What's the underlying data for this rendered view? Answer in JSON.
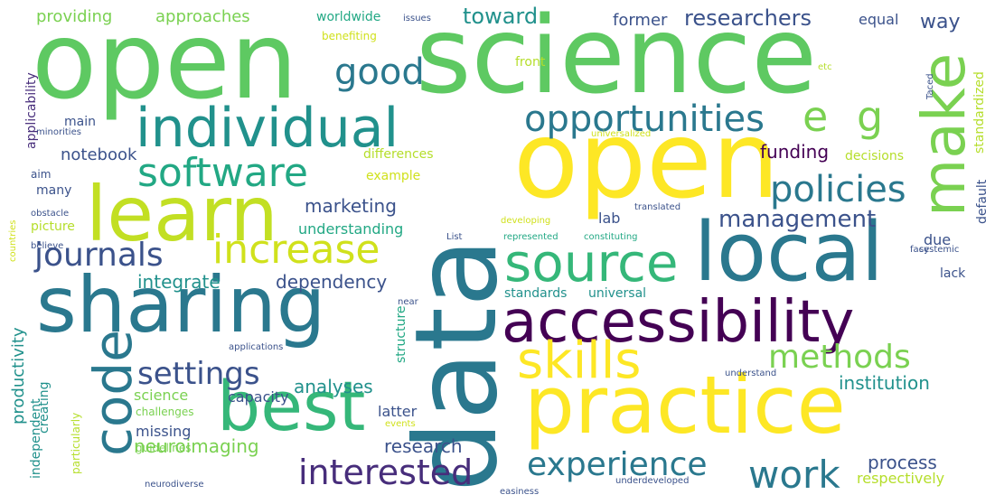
{
  "cloud": {
    "background": "#ffffff",
    "palette": [
      "#440154",
      "#3b528b",
      "#21918c",
      "#5ec962",
      "#fde725"
    ],
    "words": [
      {
        "text": "open",
        "color": "#5ec962",
        "vertical": false
      },
      {
        "text": "science",
        "color": "#5ec962",
        "vertical": false
      },
      {
        "text": "open",
        "color": "#fde725",
        "vertical": false
      },
      {
        "text": "data",
        "color": "#2a788e",
        "vertical": true
      },
      {
        "text": "individual",
        "color": "#21918c",
        "vertical": false
      },
      {
        "text": "learn",
        "color": "#c2df23",
        "vertical": false
      },
      {
        "text": "local",
        "color": "#2a788e",
        "vertical": false
      },
      {
        "text": "sharing",
        "color": "#2a788e",
        "vertical": false
      },
      {
        "text": "accessibility",
        "color": "#440154",
        "vertical": false
      },
      {
        "text": "practice",
        "color": "#fde725",
        "vertical": false
      },
      {
        "text": "best",
        "color": "#35b779",
        "vertical": false
      },
      {
        "text": "skills",
        "color": "#fde725",
        "vertical": false
      },
      {
        "text": "source",
        "color": "#35b779",
        "vertical": false
      },
      {
        "text": "software",
        "color": "#22a884",
        "vertical": false
      },
      {
        "text": "increase",
        "color": "#d0e11c",
        "vertical": false
      },
      {
        "text": "make",
        "color": "#7ad151",
        "vertical": true
      },
      {
        "text": "code",
        "color": "#2a788e",
        "vertical": true
      },
      {
        "text": "e",
        "color": "#7ad151",
        "vertical": false
      },
      {
        "text": "g",
        "color": "#7ad151",
        "vertical": false
      },
      {
        "text": "opportunities",
        "color": "#2a788e",
        "vertical": false
      },
      {
        "text": "good",
        "color": "#2a788e",
        "vertical": false
      },
      {
        "text": "policies",
        "color": "#2a788e",
        "vertical": false
      },
      {
        "text": "journals",
        "color": "#3b528b",
        "vertical": false
      },
      {
        "text": "methods",
        "color": "#7ad151",
        "vertical": false
      },
      {
        "text": "management",
        "color": "#3b528b",
        "vertical": false
      },
      {
        "text": "settings",
        "color": "#3b528b",
        "vertical": false
      },
      {
        "text": "interested",
        "color": "#472d7b",
        "vertical": false
      },
      {
        "text": "experience",
        "color": "#2a788e",
        "vertical": false
      },
      {
        "text": "work",
        "color": "#2a788e",
        "vertical": false
      },
      {
        "text": "researchers",
        "color": "#3b528b",
        "vertical": false
      },
      {
        "text": "toward",
        "color": "#21918c",
        "vertical": false
      },
      {
        "text": "approaches",
        "color": "#7ad151",
        "vertical": false
      },
      {
        "text": "providing",
        "color": "#7ad151",
        "vertical": false
      },
      {
        "text": "worldwide",
        "color": "#22a884",
        "vertical": false
      },
      {
        "text": "former",
        "color": "#3b528b",
        "vertical": false
      },
      {
        "text": "equal",
        "color": "#3b528b",
        "vertical": false
      },
      {
        "text": "way",
        "color": "#3b528b",
        "vertical": false
      },
      {
        "text": "issues",
        "color": "#3b528b",
        "vertical": false
      },
      {
        "text": "benefiting",
        "color": "#d0e11c",
        "vertical": false
      },
      {
        "text": "front",
        "color": "#b5de2b",
        "vertical": false
      },
      {
        "text": "etc",
        "color": "#b5de2b",
        "vertical": false
      },
      {
        "text": "notebook",
        "color": "#3b528b",
        "vertical": false
      },
      {
        "text": "main",
        "color": "#3b528b",
        "vertical": false
      },
      {
        "text": "minorities",
        "color": "#3b528b",
        "vertical": false
      },
      {
        "text": "aim",
        "color": "#3b528b",
        "vertical": false
      },
      {
        "text": "many",
        "color": "#3b528b",
        "vertical": false
      },
      {
        "text": "obstacle",
        "color": "#3b528b",
        "vertical": false
      },
      {
        "text": "picture",
        "color": "#b5de2b",
        "vertical": false
      },
      {
        "text": "believe",
        "color": "#3b528b",
        "vertical": false
      },
      {
        "text": "funding",
        "color": "#440154",
        "vertical": false
      },
      {
        "text": "decisions",
        "color": "#b5de2b",
        "vertical": false
      },
      {
        "text": "differences",
        "color": "#b5de2b",
        "vertical": false
      },
      {
        "text": "example",
        "color": "#d0e11c",
        "vertical": false
      },
      {
        "text": "universalized",
        "color": "#d0e11c",
        "vertical": false
      },
      {
        "text": "marketing",
        "color": "#3b528b",
        "vertical": false
      },
      {
        "text": "understanding",
        "color": "#22a884",
        "vertical": false
      },
      {
        "text": "lab",
        "color": "#3b528b",
        "vertical": false
      },
      {
        "text": "translated",
        "color": "#3b528b",
        "vertical": false
      },
      {
        "text": "developing",
        "color": "#d0e11c",
        "vertical": false
      },
      {
        "text": "List",
        "color": "#3b528b",
        "vertical": false
      },
      {
        "text": "represented",
        "color": "#22a884",
        "vertical": false
      },
      {
        "text": "constituting",
        "color": "#22a884",
        "vertical": false
      },
      {
        "text": "due",
        "color": "#3b528b",
        "vertical": false
      },
      {
        "text": "face",
        "color": "#3b528b",
        "vertical": false
      },
      {
        "text": "systemic",
        "color": "#3b528b",
        "vertical": false
      },
      {
        "text": "lack",
        "color": "#3b528b",
        "vertical": false
      },
      {
        "text": "integrate",
        "color": "#21918c",
        "vertical": false
      },
      {
        "text": "dependency",
        "color": "#3b528b",
        "vertical": false
      },
      {
        "text": "standards",
        "color": "#21918c",
        "vertical": false
      },
      {
        "text": "universal",
        "color": "#21918c",
        "vertical": false
      },
      {
        "text": "near",
        "color": "#3b528b",
        "vertical": false
      },
      {
        "text": "applications",
        "color": "#3b528b",
        "vertical": false
      },
      {
        "text": "productivity",
        "color": "#21918c",
        "vertical": true
      },
      {
        "text": "creating",
        "color": "#21918c",
        "vertical": true
      },
      {
        "text": "independent",
        "color": "#21918c",
        "vertical": true
      },
      {
        "text": "particularly",
        "color": "#b5de2b",
        "vertical": true
      },
      {
        "text": "applicability",
        "color": "#472d7b",
        "vertical": true
      },
      {
        "text": "countries",
        "color": "#d0e11c",
        "vertical": true
      },
      {
        "text": "structure",
        "color": "#22a884",
        "vertical": true
      },
      {
        "text": "default",
        "color": "#3b528b",
        "vertical": true
      },
      {
        "text": "standardized",
        "color": "#b5de2b",
        "vertical": true
      },
      {
        "text": "Taced",
        "color": "#3b528b",
        "vertical": true
      },
      {
        "text": "neuroimaging",
        "color": "#7ad151",
        "vertical": false
      },
      {
        "text": "research",
        "color": "#3b528b",
        "vertical": false
      },
      {
        "text": "analyses",
        "color": "#21918c",
        "vertical": false
      },
      {
        "text": "science",
        "color": "#7ad151",
        "vertical": false
      },
      {
        "text": "capacity",
        "color": "#3b528b",
        "vertical": false
      },
      {
        "text": "challenges",
        "color": "#7ad151",
        "vertical": false
      },
      {
        "text": "missing",
        "color": "#3b528b",
        "vertical": false
      },
      {
        "text": "guidelines",
        "color": "#7ad151",
        "vertical": false
      },
      {
        "text": "latter",
        "color": "#3b528b",
        "vertical": false
      },
      {
        "text": "events",
        "color": "#d0e11c",
        "vertical": false
      },
      {
        "text": "institution",
        "color": "#21918c",
        "vertical": false
      },
      {
        "text": "understand",
        "color": "#3b528b",
        "vertical": false
      },
      {
        "text": "process",
        "color": "#3b528b",
        "vertical": false
      },
      {
        "text": "respectively",
        "color": "#b5de2b",
        "vertical": false
      },
      {
        "text": "neurodiverse",
        "color": "#3b528b",
        "vertical": false
      },
      {
        "text": "easiness",
        "color": "#3b528b",
        "vertical": false
      },
      {
        "text": "underdeveloped",
        "color": "#3b528b",
        "vertical": false
      }
    ]
  }
}
